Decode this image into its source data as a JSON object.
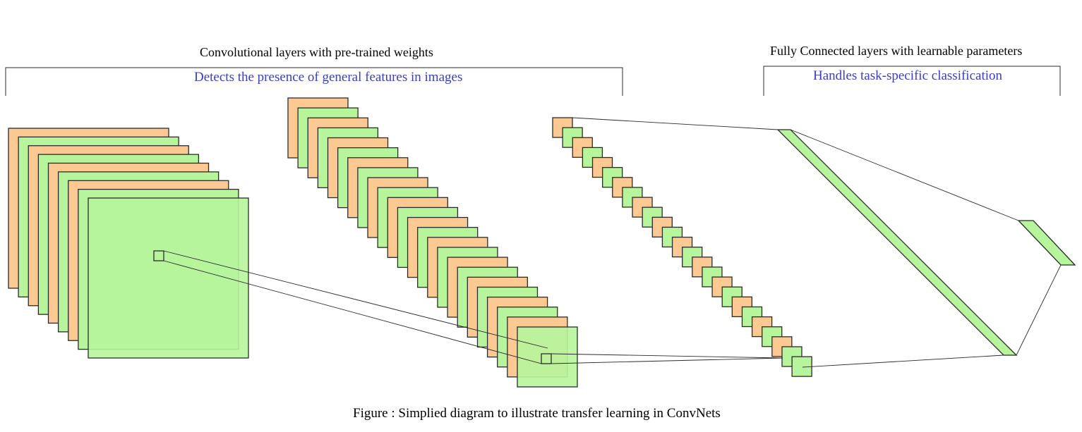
{
  "conv_section": {
    "heading": "Convolutional layers with pre-trained weights",
    "subheading": "Detects the presence of general features in images"
  },
  "fc_section": {
    "heading": "Fully Connected layers with learnable parameters",
    "subheading": "Handles task-specific classification"
  },
  "caption": "Figure : Simplied diagram to illustrate transfer learning in ConvNets",
  "colors": {
    "orange_fill": "#fcc993",
    "green_fill": "#b7f59c",
    "stroke": "#2b2b2b",
    "blue_text": "#3a3fc4"
  }
}
